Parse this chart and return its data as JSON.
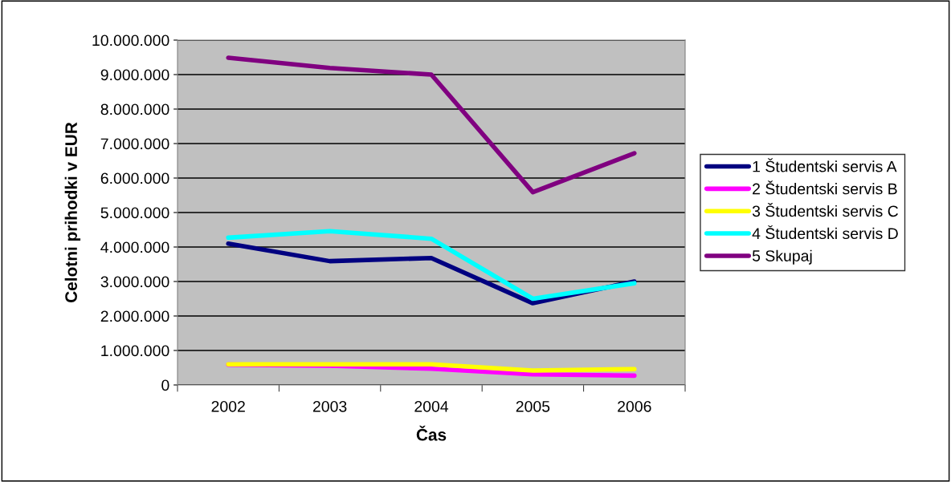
{
  "chart_data": {
    "type": "line",
    "xlabel": "Čas",
    "ylabel": "Celotni prihodki v EUR",
    "categories": [
      "2002",
      "2003",
      "2004",
      "2005",
      "2006"
    ],
    "series": [
      {
        "name": "1 Študentski servis A",
        "color": "#000080",
        "values": [
          4100000,
          3590000,
          3680000,
          2370000,
          3000000
        ]
      },
      {
        "name": "2 Študentski servis B",
        "color": "#ff00ff",
        "values": [
          590000,
          560000,
          470000,
          310000,
          270000
        ]
      },
      {
        "name": "3 Študentski servis C",
        "color": "#ffff00",
        "values": [
          600000,
          600000,
          600000,
          420000,
          460000
        ]
      },
      {
        "name": "4 Študentski servis D",
        "color": "#00ffff",
        "values": [
          4270000,
          4460000,
          4240000,
          2500000,
          2950000
        ]
      },
      {
        "name": "5 Skupaj",
        "color": "#800080",
        "values": [
          9490000,
          9190000,
          9000000,
          5590000,
          6720000
        ]
      }
    ],
    "ylim": [
      0,
      10000000
    ],
    "yticks": [
      {
        "value": 0,
        "label": "0"
      },
      {
        "value": 1000000,
        "label": "1.000.000"
      },
      {
        "value": 2000000,
        "label": "2.000.000"
      },
      {
        "value": 3000000,
        "label": "3.000.000"
      },
      {
        "value": 4000000,
        "label": "4.000.000"
      },
      {
        "value": 5000000,
        "label": "5.000.000"
      },
      {
        "value": 6000000,
        "label": "6.000.000"
      },
      {
        "value": 7000000,
        "label": "7.000.000"
      },
      {
        "value": 8000000,
        "label": "8.000.000"
      },
      {
        "value": 9000000,
        "label": "9.000.000"
      },
      {
        "value": 10000000,
        "label": "10.000.000"
      }
    ],
    "grid": "y",
    "legend": "right",
    "marker": "none",
    "line_style": "solid"
  }
}
